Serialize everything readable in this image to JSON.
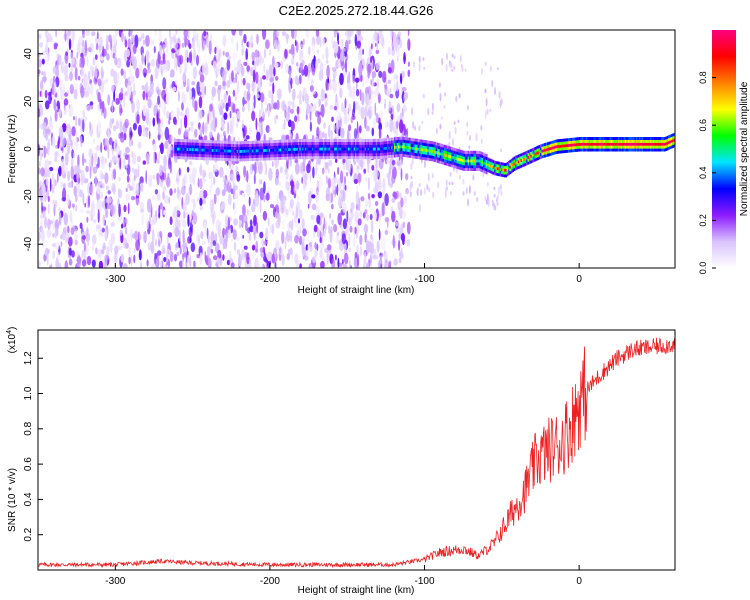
{
  "title": "C2E2.2025.272.18.44.G26",
  "chart_data": [
    {
      "type": "heatmap",
      "title": "C2E2.2025.272.18.44.G26",
      "xlabel": "Height of straight line (km)",
      "ylabel": "Frequency (Hz)",
      "xlim": [
        -350,
        62
      ],
      "ylim": [
        -50,
        50
      ],
      "xticks": [
        -300,
        -200,
        -100,
        0
      ],
      "yticks": [
        -40,
        -20,
        0,
        20,
        40
      ],
      "colorbar": {
        "label": "Normalized spectral amplitude",
        "range": [
          0,
          1
        ],
        "ticks": [
          0.0,
          0.2,
          0.4,
          0.6,
          0.8
        ],
        "colormap": [
          "#ffffff",
          "#d9c2ff",
          "#8c1aff",
          "#0000ff",
          "#00e5ff",
          "#00ff00",
          "#ffff00",
          "#ff8000",
          "#ff0000",
          "#ff0080"
        ]
      },
      "ridge": {
        "description": "dominant Doppler frequency track",
        "points": [
          [
            -260,
            0
          ],
          [
            -220,
            -1
          ],
          [
            -180,
            0
          ],
          [
            -150,
            0
          ],
          [
            -130,
            0
          ],
          [
            -115,
            1
          ],
          [
            -105,
            0
          ],
          [
            -95,
            -1
          ],
          [
            -85,
            -3
          ],
          [
            -75,
            -5
          ],
          [
            -65,
            -5
          ],
          [
            -55,
            -8
          ],
          [
            -48,
            -9
          ],
          [
            -42,
            -6
          ],
          [
            -35,
            -4
          ],
          [
            -25,
            -1
          ],
          [
            -15,
            1
          ],
          [
            0,
            2
          ],
          [
            20,
            2
          ],
          [
            40,
            2
          ],
          [
            55,
            2
          ],
          [
            62,
            4
          ]
        ]
      }
    },
    {
      "type": "line",
      "xlabel": "Height of straight line (km)",
      "ylabel": "SNR (10 * v/v)",
      "y_multiplier_label": "(x10",
      "y_multiplier_exp": "4",
      "xlim": [
        -350,
        62
      ],
      "ylim": [
        0,
        1.36
      ],
      "xticks": [
        -300,
        -200,
        -100,
        0
      ],
      "yticks": [
        0.2,
        0.4,
        0.6,
        0.8,
        1.0,
        1.2
      ],
      "series": [
        {
          "name": "SNR",
          "color": "#ee2020",
          "envelope": [
            [
              -350,
              0.03
            ],
            [
              -300,
              0.03
            ],
            [
              -270,
              0.05
            ],
            [
              -250,
              0.04
            ],
            [
              -200,
              0.03
            ],
            [
              -150,
              0.03
            ],
            [
              -120,
              0.03
            ],
            [
              -100,
              0.06
            ],
            [
              -90,
              0.1
            ],
            [
              -75,
              0.12
            ],
            [
              -65,
              0.08
            ],
            [
              -55,
              0.15
            ],
            [
              -45,
              0.3
            ],
            [
              -35,
              0.45
            ],
            [
              -28,
              0.62
            ],
            [
              -20,
              0.68
            ],
            [
              -12,
              0.72
            ],
            [
              -5,
              0.82
            ],
            [
              0,
              0.95
            ],
            [
              5,
              1.02
            ],
            [
              15,
              1.12
            ],
            [
              25,
              1.2
            ],
            [
              35,
              1.25
            ],
            [
              45,
              1.26
            ],
            [
              62,
              1.28
            ]
          ]
        }
      ]
    }
  ]
}
